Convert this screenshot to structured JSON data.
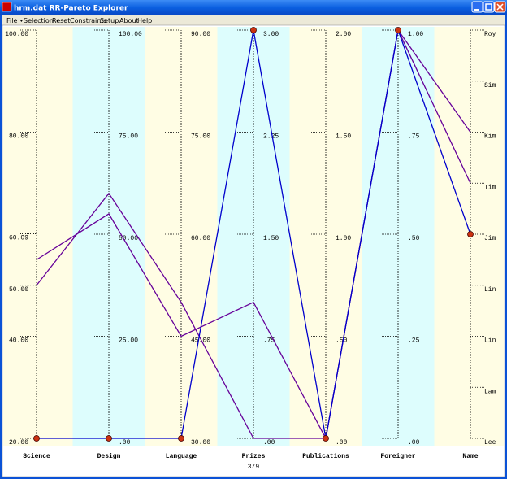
{
  "window": {
    "title": "hrm.dat RR-Pareto Explorer"
  },
  "menu": [
    "File",
    "Selection",
    "Reset",
    "Constraints",
    "Setup",
    "About",
    "Help"
  ],
  "chart_data": {
    "type": "parallel",
    "axes": [
      {
        "name": "Science",
        "lim": [
          20,
          100
        ],
        "ticks": [
          {
            "value": 100,
            "label": "100.00"
          },
          {
            "value": 80,
            "label": "80.00"
          },
          60.09,
          {
            "value": 50,
            "label": "50.00"
          },
          {
            "value": 40,
            "label": "40.00"
          },
          {
            "value": 20,
            "label": "20.00"
          }
        ]
      },
      {
        "name": "Design",
        "lim": [
          0,
          100
        ],
        "ticks": [
          {
            "value": 100,
            "label": "100.00"
          },
          {
            "value": 75,
            "label": "75.00"
          },
          {
            "value": 50,
            "label": "50.00"
          },
          {
            "value": 25,
            "label": "25.00"
          },
          {
            "value": 0,
            "label": ".00"
          }
        ]
      },
      {
        "name": "Language",
        "lim": [
          30,
          90
        ],
        "ticks": [
          {
            "value": 90,
            "label": "90.00"
          },
          {
            "value": 75,
            "label": "75.00"
          },
          {
            "value": 60,
            "label": "60.00"
          },
          {
            "value": 45,
            "label": "45.00"
          },
          {
            "value": 30,
            "label": "30.00"
          }
        ]
      },
      {
        "name": "Prizes",
        "lim": [
          0,
          3
        ],
        "ticks": [
          {
            "value": 3,
            "label": "3.00"
          },
          {
            "value": 2.25,
            "label": "2.25"
          },
          {
            "value": 1.5,
            "label": "1.50"
          },
          {
            "value": 0.75,
            "label": ".75"
          },
          {
            "value": 0,
            "label": ".00"
          }
        ]
      },
      {
        "name": "Publications",
        "lim": [
          0,
          2
        ],
        "ticks": [
          {
            "value": 2,
            "label": "2.00"
          },
          {
            "value": 1.5,
            "label": "1.50"
          },
          {
            "value": 1,
            "label": "1.00"
          },
          {
            "value": 0.5,
            "label": ".50"
          },
          {
            "value": 0,
            "label": ".00"
          }
        ]
      },
      {
        "name": "Foreigner",
        "lim": [
          0,
          1
        ],
        "ticks": [
          {
            "value": 1,
            "label": "1.00"
          },
          {
            "value": 0.75,
            "label": ".75"
          },
          {
            "value": 0.5,
            "label": ".50"
          },
          {
            "value": 0.25,
            "label": ".25"
          },
          {
            "value": 0,
            "label": ".00"
          }
        ]
      },
      {
        "name": "Name",
        "categories": [
          "Roy",
          "Sim",
          "Kim",
          "Tim",
          "Jim",
          "Lin",
          "Lin",
          "Lam",
          "Lee"
        ]
      }
    ],
    "series": [
      {
        "color": "#660099",
        "values": [
          55,
          55,
          45,
          1,
          0,
          1,
          "Kim"
        ]
      },
      {
        "color": "#660099",
        "values": [
          50,
          60,
          50,
          0,
          0,
          1,
          "Tim"
        ]
      },
      {
        "color": "#0000cc",
        "values": [
          20,
          0,
          30,
          3,
          0,
          1,
          "Jim"
        ],
        "highlight": true
      }
    ],
    "footer": "3/9"
  }
}
